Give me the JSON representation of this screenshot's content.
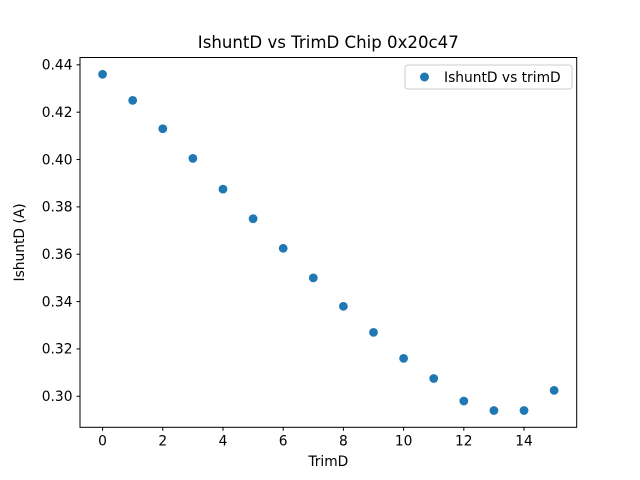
{
  "figure": {
    "background": "#ffffff"
  },
  "chart_data": {
    "type": "scatter",
    "title": "IshuntD vs TrimD Chip 0x20c47",
    "xlabel": "TrimD",
    "ylabel": "IshuntD (A)",
    "legend": {
      "position": "upper right",
      "entries": [
        {
          "label": "IshuntD vs trimD",
          "marker_color": "#1f77b4"
        }
      ]
    },
    "x": [
      0,
      1,
      2,
      3,
      4,
      5,
      6,
      7,
      8,
      9,
      10,
      11,
      12,
      13,
      14,
      15
    ],
    "y": [
      0.436,
      0.425,
      0.413,
      0.4005,
      0.3875,
      0.375,
      0.3625,
      0.35,
      0.338,
      0.327,
      0.316,
      0.3075,
      0.298,
      0.294,
      0.294,
      0.3025
    ],
    "xlim": [
      -0.75,
      15.75
    ],
    "ylim": [
      0.2869,
      0.4431
    ],
    "xticks": [
      0,
      2,
      4,
      6,
      8,
      10,
      12,
      14
    ],
    "yticks": [
      0.3,
      0.32,
      0.34,
      0.36,
      0.38,
      0.4,
      0.42,
      0.44
    ],
    "ytick_decimals": 2,
    "grid": false,
    "marker_color": "#1f77b4",
    "axis_color": "#000000",
    "legend_border_color": "#cccccc"
  }
}
